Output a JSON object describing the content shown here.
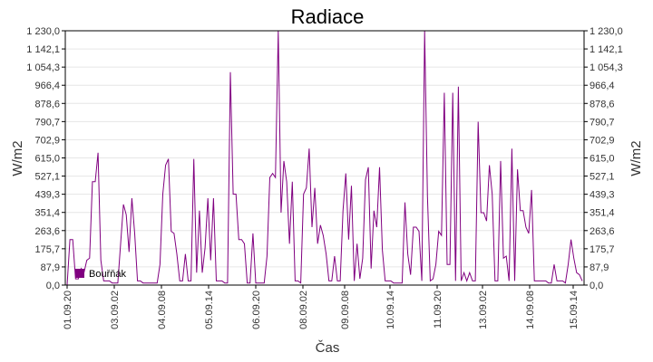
{
  "chart_data": {
    "type": "line",
    "title": "Radiace",
    "xlabel": "Čas",
    "ylabel": "W/m2",
    "ylim": [
      0,
      1230
    ],
    "grid": true,
    "legend_position": "bottom-left",
    "y_ticks": [
      "0,0",
      "87,9",
      "175,7",
      "263,6",
      "351,4",
      "439,3",
      "527,1",
      "615,0",
      "702,9",
      "790,7",
      "878,6",
      "966,4",
      "1 054,3",
      "1 142,1",
      "1 230,0"
    ],
    "x_ticks": [
      "01.09.20",
      "03.09.02",
      "04.09.08",
      "05.09.14",
      "06.09.20",
      "08.09.02",
      "09.09.08",
      "10.09.14",
      "11.09.20",
      "13.09.02",
      "14.09.08",
      "15.09.14"
    ],
    "series": [
      {
        "name": "Bouřňák",
        "color": "#800080",
        "values": [
          0,
          220,
          220,
          30,
          30,
          80,
          60,
          120,
          130,
          500,
          500,
          640,
          120,
          20,
          20,
          20,
          10,
          10,
          10,
          200,
          390,
          340,
          160,
          420,
          250,
          20,
          20,
          10,
          10,
          10,
          10,
          10,
          10,
          100,
          440,
          580,
          610,
          260,
          250,
          150,
          20,
          20,
          150,
          20,
          20,
          610,
          60,
          360,
          60,
          180,
          420,
          120,
          420,
          20,
          20,
          20,
          10,
          10,
          1030,
          440,
          440,
          220,
          220,
          200,
          10,
          10,
          250,
          10,
          10,
          10,
          10,
          140,
          520,
          540,
          520,
          1230,
          350,
          600,
          500,
          200,
          500,
          20,
          20,
          10,
          440,
          470,
          660,
          280,
          470,
          200,
          290,
          240,
          150,
          20,
          20,
          140,
          20,
          20,
          360,
          540,
          220,
          480,
          20,
          200,
          30,
          130,
          510,
          570,
          80,
          360,
          280,
          570,
          170,
          20,
          20,
          20,
          10,
          10,
          10,
          10,
          400,
          150,
          50,
          280,
          280,
          260,
          20,
          1230,
          430,
          20,
          30,
          100,
          260,
          240,
          930,
          100,
          100,
          930,
          20,
          960,
          20,
          60,
          20,
          60,
          20,
          20,
          790,
          350,
          350,
          310,
          580,
          440,
          20,
          20,
          600,
          130,
          140,
          20,
          660,
          20,
          560,
          360,
          360,
          280,
          250,
          460,
          20,
          20,
          20,
          20,
          20,
          10,
          10,
          100,
          20,
          20,
          20,
          10,
          100,
          220,
          130,
          60,
          50,
          20
        ]
      }
    ]
  }
}
